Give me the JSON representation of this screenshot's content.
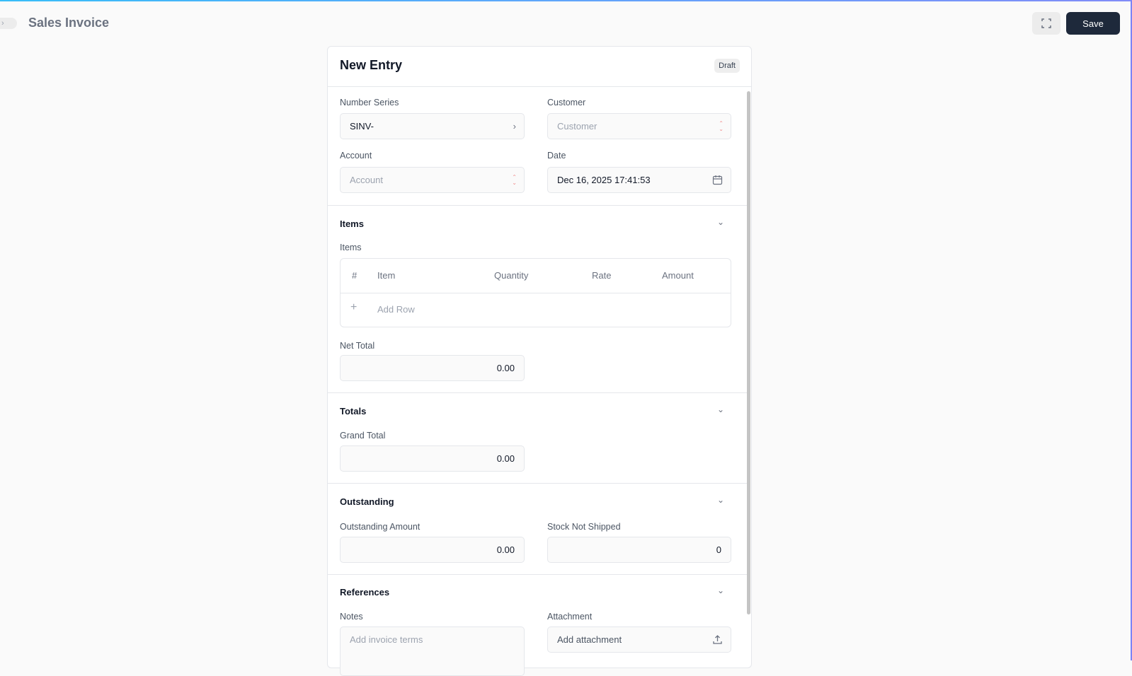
{
  "header": {
    "title": "Sales Invoice",
    "save_label": "Save",
    "fullscreen_icon": "expand-icon",
    "sidebar_toggle_icon": "chevron-right-icon"
  },
  "form": {
    "title": "New Entry",
    "status": "Draft",
    "number_series": {
      "label": "Number Series",
      "value": "SINV-"
    },
    "customer": {
      "label": "Customer",
      "placeholder": "Customer"
    },
    "account": {
      "label": "Account",
      "placeholder": "Account"
    },
    "date": {
      "label": "Date",
      "value": "Dec 16, 2025 17:41:53"
    },
    "sections": {
      "items": {
        "title": "Items",
        "table_label": "Items",
        "columns": [
          "#",
          "Item",
          "Quantity",
          "Rate",
          "Amount"
        ],
        "add_row": "Add Row",
        "net_total_label": "Net Total",
        "net_total": "0.00"
      },
      "totals": {
        "title": "Totals",
        "grand_total_label": "Grand Total",
        "grand_total": "0.00"
      },
      "outstanding": {
        "title": "Outstanding",
        "outstanding_label": "Outstanding Amount",
        "outstanding_value": "0.00",
        "stock_label": "Stock Not Shipped",
        "stock_value": "0"
      },
      "references": {
        "title": "References",
        "notes_label": "Notes",
        "notes_placeholder": "Add invoice terms",
        "attachment_label": "Attachment",
        "attachment_placeholder": "Add attachment"
      }
    }
  },
  "colors": {
    "primary": "#1e293b",
    "required": "#f08a8a"
  }
}
